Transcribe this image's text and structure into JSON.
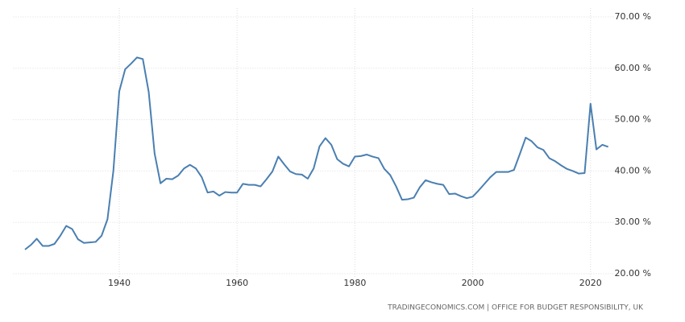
{
  "chart_data": {
    "type": "line",
    "source": "TRADINGECONOMICS.COM | OFFICE FOR BUDGET RESPONSIBILITY, UK",
    "x": [
      1924,
      1925,
      1926,
      1927,
      1928,
      1929,
      1930,
      1931,
      1932,
      1933,
      1934,
      1935,
      1936,
      1937,
      1938,
      1939,
      1940,
      1941,
      1942,
      1943,
      1944,
      1945,
      1946,
      1947,
      1948,
      1949,
      1950,
      1951,
      1952,
      1953,
      1954,
      1955,
      1956,
      1957,
      1958,
      1959,
      1960,
      1961,
      1962,
      1963,
      1964,
      1965,
      1966,
      1967,
      1968,
      1969,
      1970,
      1971,
      1972,
      1973,
      1974,
      1975,
      1976,
      1977,
      1978,
      1979,
      1980,
      1981,
      1982,
      1983,
      1984,
      1985,
      1986,
      1987,
      1988,
      1989,
      1990,
      1991,
      1992,
      1993,
      1994,
      1995,
      1996,
      1997,
      1998,
      1999,
      2000,
      2001,
      2002,
      2003,
      2004,
      2005,
      2006,
      2007,
      2008,
      2009,
      2010,
      2011,
      2012,
      2013,
      2014,
      2015,
      2016,
      2017,
      2018,
      2019,
      2020,
      2021,
      2022,
      2023
    ],
    "values": [
      24.7,
      25.6,
      26.8,
      25.4,
      25.4,
      25.8,
      27.4,
      29.3,
      28.7,
      26.7,
      26.0,
      26.1,
      26.2,
      27.4,
      30.6,
      40.0,
      55.5,
      59.8,
      60.9,
      62.1,
      61.8,
      55.4,
      43.4,
      37.6,
      38.5,
      38.4,
      39.1,
      40.5,
      41.2,
      40.5,
      38.8,
      35.8,
      36.0,
      35.2,
      35.9,
      35.8,
      35.8,
      37.5,
      37.3,
      37.3,
      37.0,
      38.4,
      39.9,
      42.8,
      41.3,
      39.9,
      39.4,
      39.3,
      38.5,
      40.5,
      44.8,
      46.4,
      45.1,
      42.3,
      41.4,
      40.9,
      42.8,
      42.9,
      43.2,
      42.8,
      42.5,
      40.4,
      39.2,
      37.0,
      34.4,
      34.5,
      34.8,
      36.8,
      38.2,
      37.8,
      37.5,
      37.3,
      35.5,
      35.6,
      35.1,
      34.7,
      35.0,
      36.2,
      37.5,
      38.8,
      39.8,
      39.8,
      39.8,
      40.2,
      43.3,
      46.5,
      45.8,
      44.6,
      44.1,
      42.5,
      41.9,
      41.1,
      40.4,
      40.0,
      39.5,
      39.6,
      53.1,
      44.2,
      45.1,
      44.7
    ],
    "color": "#4a7fb1",
    "xlim": [
      1922,
      2024
    ],
    "xticks": [
      1940,
      1960,
      1980,
      2000,
      2020
    ],
    "ylim": [
      20,
      70
    ],
    "yticks": [
      {
        "value": 20,
        "label": "20.00 %"
      },
      {
        "value": 30,
        "label": "30.00 %"
      },
      {
        "value": 40,
        "label": "40.00 %"
      },
      {
        "value": 50,
        "label": "50.00 %"
      },
      {
        "value": 60,
        "label": "60.00 %"
      },
      {
        "value": 70,
        "label": "70.00 %"
      }
    ],
    "grid": true
  }
}
